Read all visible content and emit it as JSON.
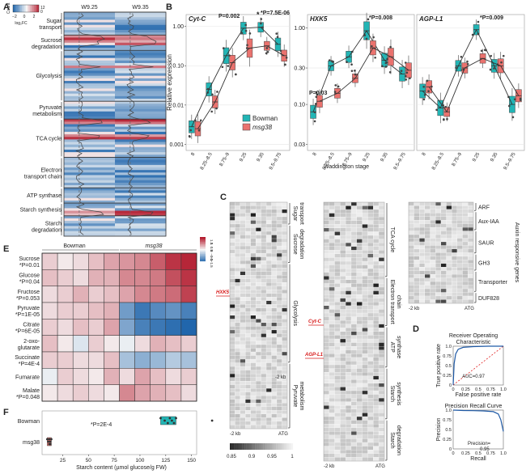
{
  "panel_labels": [
    "A",
    "B",
    "C",
    "D",
    "E",
    "F"
  ],
  "chart_data": [
    {
      "id": "A",
      "type": "heatmap",
      "columns": [
        "W9.25",
        "W9.35"
      ],
      "legend": {
        "title_lines": [
          "Count",
          "log₂FC"
        ],
        "ticks": [
          "12",
          "0",
          "−2",
          "0",
          "2"
        ]
      },
      "groups": [
        {
          "label": "Sugar\ntransport",
          "rows": 9
        },
        {
          "label": "Sucrose\ndegradation",
          "rows": 6
        },
        {
          "label": "Glycolysis",
          "rows": 20
        },
        {
          "label": "Pyruvate\nmetabolism",
          "rows": 7
        },
        {
          "label": "TCA cycle",
          "rows": 15
        },
        {
          "label": "Electron\ntransport chain",
          "rows": 12
        },
        {
          "label": "ATP synthase",
          "rows": 6
        },
        {
          "label": "Starch synthesis",
          "rows": 5
        },
        {
          "label": "Starch\ndegradation",
          "rows": 8
        }
      ],
      "red_rows": [
        9,
        10,
        11,
        12,
        21,
        42,
        43,
        48,
        49,
        78,
        79
      ]
    },
    {
      "id": "B",
      "type": "box",
      "ylabel": "Relative expression",
      "xlabel": "Waddington stage",
      "yticks": [
        "1.00",
        "0.10",
        "0.01",
        "0.001"
      ],
      "yticks2": [
        "1.00",
        "0.30",
        "0.10",
        "0.03"
      ],
      "stages": [
        "8",
        "8.25–8.5",
        "8.75–9",
        "9.25",
        "9.35",
        "9.5–9.75"
      ],
      "legend": {
        "series": [
          {
            "name": "Bowman",
            "color": "#22b5b5"
          },
          {
            "name": "msg38",
            "color": "#ea726e"
          }
        ]
      },
      "genes": [
        {
          "name": "Cyt-C",
          "annot": [
            "P=0.002",
            "*",
            "*P=7.5E-06"
          ],
          "bowman": [
            0.0028,
            0.025,
            0.18,
            0.9,
            0.95,
            0.35
          ],
          "msg38": [
            0.0025,
            0.012,
            0.12,
            0.28,
            0.32,
            0.18
          ]
        },
        {
          "name": "HXK5",
          "annot": [
            "P=0.03",
            "*P=0.008"
          ],
          "bowman": [
            0.08,
            0.32,
            0.42,
            0.92,
            0.38,
            0.25
          ],
          "msg38": [
            0.11,
            0.14,
            0.22,
            0.55,
            0.42,
            0.28
          ]
        },
        {
          "name": "AGP-L1",
          "annot": [
            "*P=0.009"
          ],
          "bowman": [
            0.15,
            0.09,
            0.32,
            0.95,
            0.32,
            0.1
          ],
          "msg38": [
            0.17,
            0.08,
            0.3,
            0.4,
            0.32,
            0.13
          ]
        }
      ]
    },
    {
      "id": "C",
      "type": "heatmap",
      "blocks": [
        {
          "groups": [
            "Sugar\ntransport",
            "Sucrose\ndegradation",
            "Glycolysis",
            "Pyruvate\nmetabolism"
          ],
          "marks": [
            "HXK5"
          ],
          "axis": [
            "-2 kb",
            "ATG"
          ]
        },
        {
          "groups": [
            "TCA cycle",
            "Electron transport\nchain",
            "ATP\nsynthase",
            "Starch\nsynthesis",
            "Starch\ndegradation"
          ],
          "marks": [
            "Cyt-C",
            "AGP-L1"
          ],
          "axis": [
            "-2 kb",
            "ATG"
          ],
          "mid_label": "-2 kb"
        },
        {
          "groups": [
            "ARF",
            "Aux-IAA",
            "SAUR",
            "GH3",
            "Transporter",
            "DUF828"
          ],
          "title": "Auxin responsive genes",
          "axis": [
            "-2 kb",
            "ATG"
          ]
        }
      ],
      "colorbar": [
        "0.85",
        "0.9",
        "0.95",
        "1"
      ]
    },
    {
      "id": "D",
      "type": "line",
      "roc": {
        "title_lines": [
          "Receiver Operating",
          "Characteristic"
        ],
        "xlabel": "False positive rate",
        "ylabel": "True positive rate",
        "auc": "AUC=0.97",
        "ticks": [
          "0",
          "0.25",
          "0.5",
          "0.75",
          "1.0"
        ],
        "x": [
          0,
          0.02,
          0.05,
          0.1,
          0.2,
          0.4,
          0.7,
          1
        ],
        "y": [
          0,
          0.55,
          0.8,
          0.92,
          0.97,
          0.99,
          1,
          1
        ]
      },
      "pr": {
        "title": "Precision Recall Curve",
        "xlabel": "Recall",
        "ylabel": "Precision",
        "prec": "Precision=",
        "val": "0.95",
        "ticks": [
          "0",
          "0.25",
          "0.5",
          "0.75",
          "1.0"
        ],
        "x": [
          0,
          0.2,
          0.4,
          0.6,
          0.8,
          0.9,
          0.95,
          1
        ],
        "y": [
          1,
          0.99,
          0.985,
          0.98,
          0.96,
          0.9,
          0.75,
          0.45
        ]
      }
    },
    {
      "id": "E",
      "type": "heatmap",
      "col_groups": [
        "Bowman",
        "msg38"
      ],
      "legend_ticks": [
        "−1.5",
        "−1",
        "−0.5",
        "0",
        "0.5",
        "1",
        "1.5"
      ],
      "rows": [
        {
          "label": "Sucrose",
          "p": "*P=0.01",
          "values": [
            0.3,
            0.1,
            0.2,
            0.4,
            0.6,
            0.7,
            0.8,
            1.1,
            1.4,
            1.5
          ]
        },
        {
          "label": "Glucose",
          "p": "*P=0.04",
          "values": [
            0.4,
            0.3,
            0.2,
            0.5,
            0.5,
            0.8,
            0.8,
            0.9,
            1.2,
            1.4
          ]
        },
        {
          "label": "Fructose",
          "p": "*P=0.053",
          "values": [
            0.2,
            0.3,
            0.5,
            0.3,
            0.4,
            0.6,
            0.8,
            0.9,
            1.0,
            1.3
          ]
        },
        {
          "label": "Pyruvate",
          "p": "*P=1E-05",
          "values": [
            0.2,
            0.3,
            0.3,
            0.4,
            0.5,
            -1.0,
            -1.4,
            -1.2,
            -1.1,
            -1.3
          ]
        },
        {
          "label": "Citrate",
          "p": "*P=6E-05",
          "values": [
            0.3,
            0.2,
            0.4,
            0.3,
            0.6,
            -0.9,
            -1.3,
            -1.4,
            -1.5,
            -1.6
          ]
        },
        {
          "label": "2-oxo-\nglutarate",
          "p": "",
          "values": [
            0.4,
            0.1,
            -0.2,
            0.3,
            0.1,
            -0.1,
            0.2,
            0.5,
            0.4,
            0.3
          ]
        },
        {
          "label": "Succinate",
          "p": "*P=4E-4",
          "values": [
            0.3,
            0.3,
            0.2,
            0.2,
            0.4,
            -0.6,
            -0.8,
            -0.7,
            -0.5,
            -0.6
          ]
        },
        {
          "label": "Fumarate",
          "p": "",
          "values": [
            -0.1,
            0.3,
            0.2,
            0.1,
            0.5,
            0.2,
            0.6,
            0.4,
            0.2,
            0.3
          ]
        },
        {
          "label": "Malate",
          "p": "*P=0.048",
          "values": [
            0.1,
            0.2,
            0.3,
            0.2,
            0.1,
            0.8,
            0.6,
            0.5,
            0.4,
            0.2
          ]
        }
      ]
    },
    {
      "id": "F",
      "type": "scatter",
      "xlabel": "Starch content (µmol glucose/g FW)",
      "xticks": [
        "25",
        "50",
        "75",
        "100",
        "125",
        "150"
      ],
      "categories": [
        "Bowman",
        "msg38"
      ],
      "annot": "*P=2E-4",
      "bowman": [
        120,
        124,
        127,
        129,
        131,
        133,
        135,
        170
      ],
      "msg38": [
        10,
        11,
        12,
        12,
        13,
        13,
        14
      ]
    }
  ]
}
